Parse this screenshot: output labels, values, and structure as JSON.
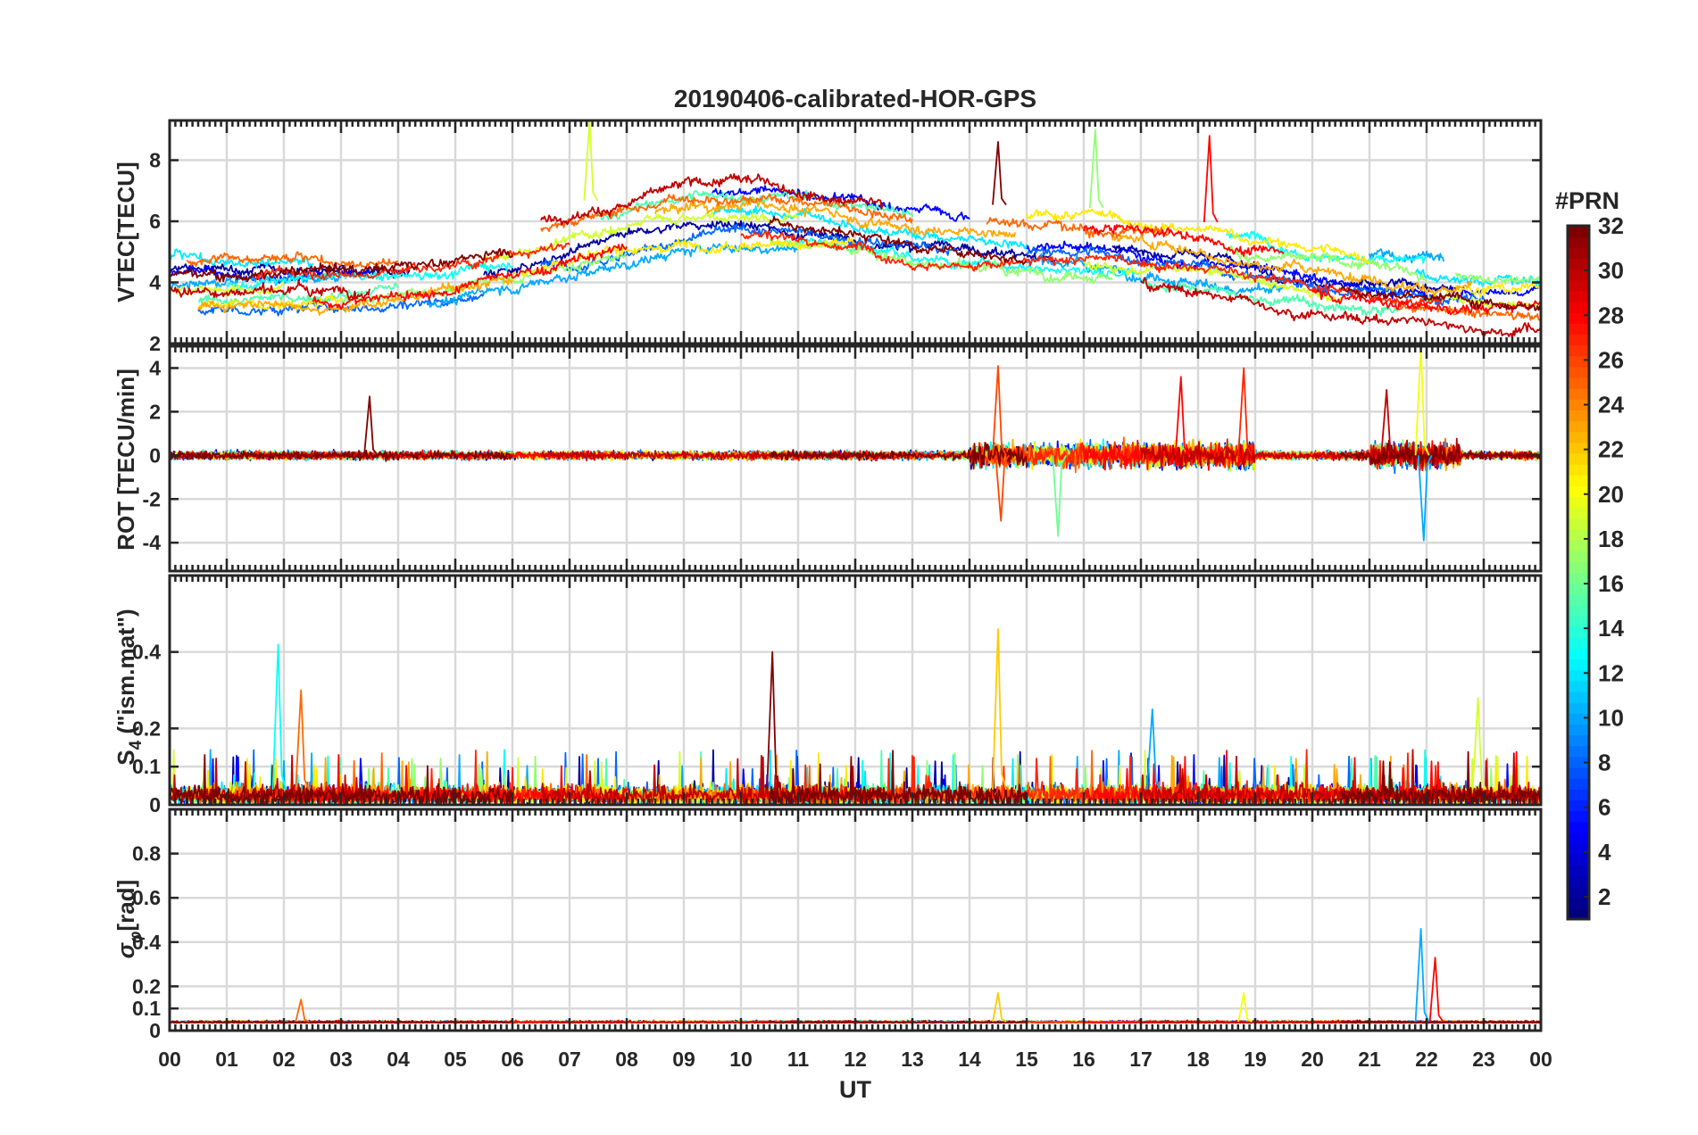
{
  "chart_data": {
    "type": "line",
    "title": "20190406-calibrated-HOR-GPS",
    "xlabel": "UT",
    "x_ticks": [
      "00",
      "01",
      "02",
      "03",
      "04",
      "05",
      "06",
      "07",
      "08",
      "09",
      "10",
      "11",
      "12",
      "13",
      "14",
      "15",
      "16",
      "17",
      "18",
      "19",
      "20",
      "21",
      "22",
      "23",
      "00"
    ],
    "xlim": [
      0,
      24
    ],
    "grid": true,
    "panels": [
      {
        "id": "vtec",
        "ylabel": "VTEC[TECU]",
        "ylim": [
          2,
          9.3
        ],
        "yticks": [
          2,
          4,
          6,
          8
        ],
        "ytick_labels": [
          "2",
          "4",
          "6",
          "8"
        ],
        "series_description": "VTEC per PRN, values mostly 3 to 7 TECU with a broad daytime maximum near 6-7 TECU around 08-12 UT and peaks near 8.5-9 TECU at 14.5, 16.2 and 18.2 UT"
      },
      {
        "id": "rot",
        "ylabel": "ROT [TECU/min]",
        "ylim": [
          -5.3,
          5
        ],
        "yticks": [
          -4,
          -2,
          0,
          2,
          4
        ],
        "ytick_labels": [
          "-4",
          "-2",
          "0",
          "2",
          "4"
        ],
        "series_description": "Rate of TEC per PRN, near 0 with spikes up to about 4-5 and down to about -4 near 14.5, 15.5, 18.8 and 22 UT"
      },
      {
        "id": "s4",
        "ylabel_main": "S",
        "ylabel_sub": "4",
        "ylabel_tail": " (\"ism.mat\")",
        "ylim": [
          0,
          0.6
        ],
        "yticks": [
          0,
          0.1,
          0.2,
          0.4
        ],
        "ytick_labels": [
          "0",
          "0.1",
          "0.2",
          "0.4"
        ],
        "series_description": "S4 index per PRN, mostly below 0.1 with peaks of about 0.42 at 01.9 UT, 0.40 at 10.5 UT and 0.46 at 14.5 UT"
      },
      {
        "id": "sigphi",
        "ylabel_main": "σ",
        "ylabel_sub": "φ",
        "ylabel_tail": "[rad]",
        "ylim": [
          0,
          1
        ],
        "yticks": [
          0,
          0.1,
          0.2,
          0.4,
          0.6,
          0.8
        ],
        "ytick_labels": [
          "0",
          "0.1",
          "0.2",
          "0.4",
          "0.6",
          "0.8"
        ],
        "series_description": "Phase scintillation index per PRN, around 0.03-0.05 with spikes of about 0.46 and 0.33 near 21.9-22.2 UT"
      }
    ],
    "colorbar": {
      "title": "#PRN",
      "range": [
        1,
        32
      ],
      "ticks": [
        2,
        4,
        6,
        8,
        10,
        12,
        14,
        16,
        18,
        20,
        22,
        24,
        26,
        28,
        30,
        32
      ],
      "tick_labels": [
        "2",
        "4",
        "6",
        "8",
        "10",
        "12",
        "14",
        "16",
        "18",
        "20",
        "22",
        "24",
        "26",
        "28",
        "30",
        "32"
      ],
      "colormap": "jet"
    },
    "prn_series": [
      {
        "prn": 2,
        "segments": [
          [
            0,
            4.2
          ],
          [
            5.5,
            15.5
          ],
          [
            16.5,
            22.5
          ]
        ]
      },
      {
        "prn": 5,
        "segments": [
          [
            0,
            3.5
          ],
          [
            9.5,
            14.0
          ],
          [
            15.0,
            22.3
          ],
          [
            22.6,
            24
          ]
        ]
      },
      {
        "prn": 8,
        "segments": [
          [
            0.5,
            5.5
          ],
          [
            6.5,
            13.8
          ],
          [
            15.0,
            23.0
          ]
        ]
      },
      {
        "prn": 10,
        "segments": [
          [
            0,
            3.0
          ],
          [
            4.5,
            11.0
          ],
          [
            15.0,
            19.5
          ],
          [
            21.0,
            22.3
          ]
        ]
      },
      {
        "prn": 12,
        "segments": [
          [
            0,
            2.5
          ],
          [
            9.5,
            15.0
          ],
          [
            21.8,
            24
          ]
        ]
      },
      {
        "prn": 13,
        "segments": [
          [
            1.0,
            6.0
          ],
          [
            11.0,
            17.0
          ],
          [
            18.5,
            22.0
          ]
        ]
      },
      {
        "prn": 15,
        "segments": [
          [
            0.5,
            4.0
          ],
          [
            7.5,
            13.0
          ],
          [
            17.0,
            21.5
          ]
        ]
      },
      {
        "prn": 17,
        "segments": [
          [
            3.0,
            8.0
          ],
          [
            10.5,
            16.5
          ],
          [
            18.5,
            22.0
          ],
          [
            22.5,
            24
          ]
        ]
      },
      {
        "prn": 19,
        "segments": [
          [
            0,
            2.0
          ],
          [
            5.5,
            11.0
          ],
          [
            16.0,
            20.5
          ],
          [
            22.0,
            24
          ]
        ]
      },
      {
        "prn": 21,
        "segments": [
          [
            0.5,
            3.0
          ],
          [
            6.0,
            12.0
          ],
          [
            15.0,
            21.0
          ],
          [
            22.5,
            24
          ]
        ]
      },
      {
        "prn": 23,
        "segments": [
          [
            0.5,
            6.0
          ],
          [
            8.5,
            14.8
          ],
          [
            16.5,
            22.8
          ]
        ]
      },
      {
        "prn": 25,
        "segments": [
          [
            0.3,
            4.0
          ],
          [
            6.5,
            13.0
          ],
          [
            14.3,
            17.5
          ],
          [
            21.5,
            24
          ]
        ]
      },
      {
        "prn": 27,
        "segments": [
          [
            1.5,
            7.0
          ],
          [
            10.0,
            15.5
          ],
          [
            15.5,
            22.3
          ]
        ]
      },
      {
        "prn": 28,
        "segments": [
          [
            2.5,
            8.0
          ],
          [
            16.0,
            19.5
          ],
          [
            20.0,
            24
          ]
        ]
      },
      {
        "prn": 30,
        "segments": [
          [
            0,
            3.5
          ],
          [
            6.5,
            12.5
          ],
          [
            17.0,
            24
          ]
        ]
      },
      {
        "prn": 32,
        "segments": [
          [
            0,
            6.0
          ],
          [
            10.5,
            15.0
          ],
          [
            20.5,
            24
          ]
        ]
      }
    ],
    "spikes": {
      "vtec": [
        {
          "t": 7.35,
          "v": 9.3,
          "prn": 19
        },
        {
          "t": 14.5,
          "v": 8.6,
          "prn": 32
        },
        {
          "t": 16.2,
          "v": 9.0,
          "prn": 17
        },
        {
          "t": 18.2,
          "v": 8.8,
          "prn": 28
        }
      ],
      "rot": [
        {
          "t": 3.5,
          "v": 2.7,
          "prn": 32
        },
        {
          "t": 14.5,
          "v": 4.1,
          "prn": 26
        },
        {
          "t": 14.55,
          "v": -3.0,
          "prn": 26
        },
        {
          "t": 15.55,
          "v": -3.7,
          "prn": 16
        },
        {
          "t": 17.7,
          "v": 3.6,
          "prn": 28
        },
        {
          "t": 18.8,
          "v": 4.0,
          "prn": 27
        },
        {
          "t": 21.9,
          "v": 5.0,
          "prn": 20
        },
        {
          "t": 21.95,
          "v": -3.9,
          "prn": 10
        },
        {
          "t": 21.3,
          "v": 3.0,
          "prn": 30
        }
      ],
      "s4": [
        {
          "t": 1.9,
          "v": 0.42,
          "prn": 13
        },
        {
          "t": 2.3,
          "v": 0.3,
          "prn": 25
        },
        {
          "t": 10.55,
          "v": 0.4,
          "prn": 32
        },
        {
          "t": 14.5,
          "v": 0.46,
          "prn": 22
        },
        {
          "t": 17.2,
          "v": 0.25,
          "prn": 10
        },
        {
          "t": 22.9,
          "v": 0.28,
          "prn": 19
        }
      ],
      "sigphi": [
        {
          "t": 2.3,
          "v": 0.14,
          "prn": 25
        },
        {
          "t": 14.5,
          "v": 0.17,
          "prn": 22
        },
        {
          "t": 18.8,
          "v": 0.17,
          "prn": 20
        },
        {
          "t": 21.9,
          "v": 0.46,
          "prn": 10
        },
        {
          "t": 22.15,
          "v": 0.33,
          "prn": 28
        }
      ]
    }
  }
}
